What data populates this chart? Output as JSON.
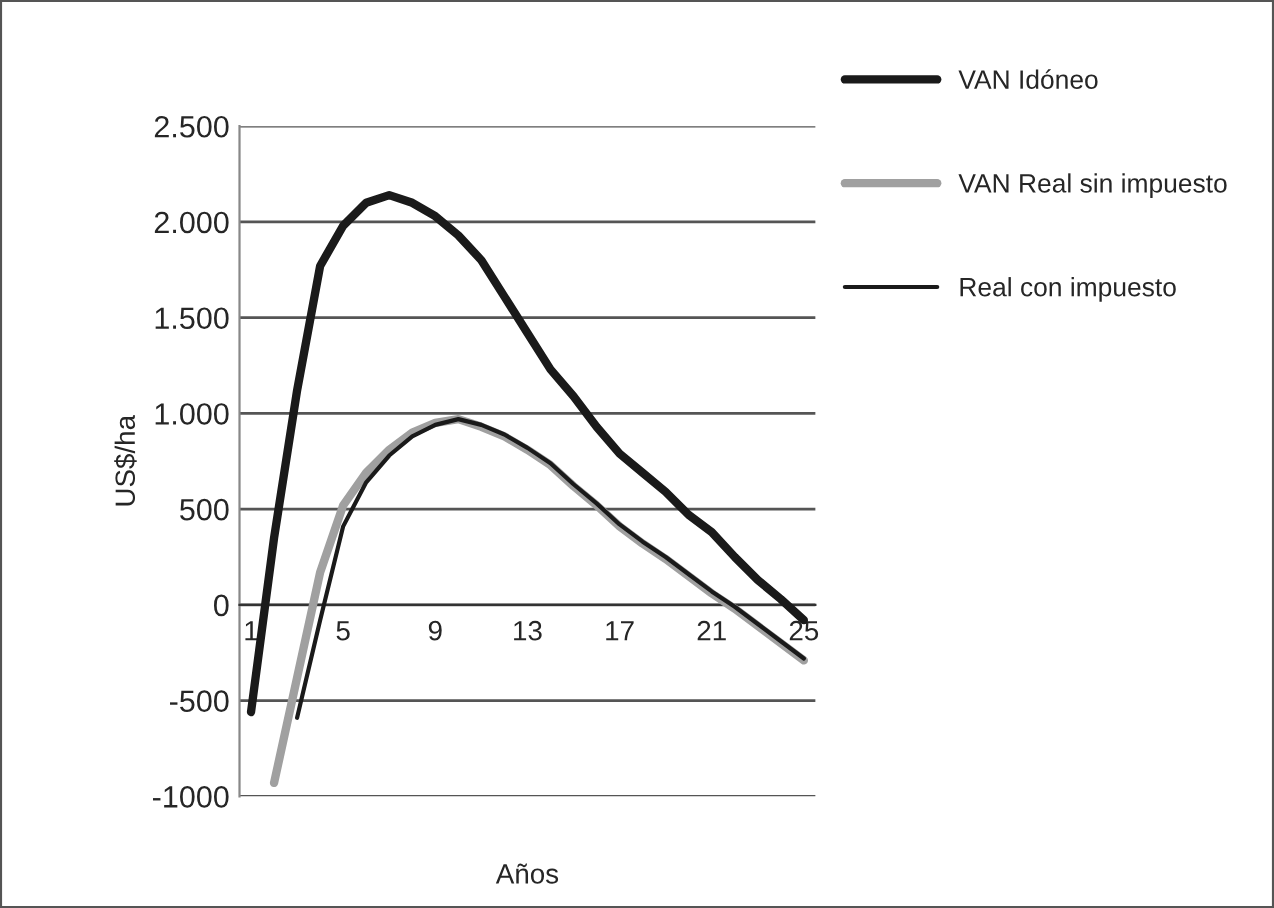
{
  "chart_data": {
    "type": "line",
    "xlabel": "Años",
    "ylabel": "US$/ha",
    "categories": [
      "1",
      null,
      null,
      null,
      "5",
      null,
      null,
      null,
      "9",
      null,
      null,
      null,
      "13",
      null,
      null,
      null,
      "17",
      null,
      null,
      null,
      "21",
      null,
      null,
      null,
      "25"
    ],
    "series": [
      {
        "name": "VAN Idóneo",
        "color": "#1a1a1a",
        "values": [
          -560,
          350,
          1120,
          1770,
          1980,
          2100,
          2140,
          2100,
          2030,
          1930,
          1800,
          1610,
          1420,
          1230,
          1090,
          930,
          790,
          690,
          590,
          470,
          380,
          250,
          130,
          30,
          -80
        ]
      },
      {
        "name": "VAN Real sin impuesto",
        "color": "#a0a0a0",
        "values": [
          null,
          -930,
          -380,
          170,
          520,
          690,
          810,
          900,
          950,
          970,
          930,
          880,
          810,
          730,
          620,
          520,
          410,
          320,
          240,
          150,
          60,
          -20,
          -110,
          -200,
          -290
        ]
      },
      {
        "name": "Real con impuesto",
        "color": "#1a1a1a",
        "values": [
          null,
          null,
          -590,
          -80,
          410,
          640,
          780,
          880,
          940,
          970,
          940,
          890,
          820,
          740,
          630,
          530,
          420,
          330,
          250,
          160,
          70,
          -10,
          -100,
          -190,
          -280
        ]
      }
    ],
    "ylim": [
      -1000,
      2500
    ],
    "yticks": [
      {
        "value": -1000,
        "label": "-1000"
      },
      {
        "value": -500,
        "label": "-500"
      },
      0,
      500,
      {
        "value": 1000,
        "label": "1.000"
      },
      {
        "value": 1500,
        "label": "1.500"
      },
      {
        "value": 2000,
        "label": "2.000"
      },
      {
        "value": 2500,
        "label": "2.500"
      }
    ],
    "grid": "y",
    "legend": "top right",
    "line_style": "solid",
    "marker": "none"
  }
}
